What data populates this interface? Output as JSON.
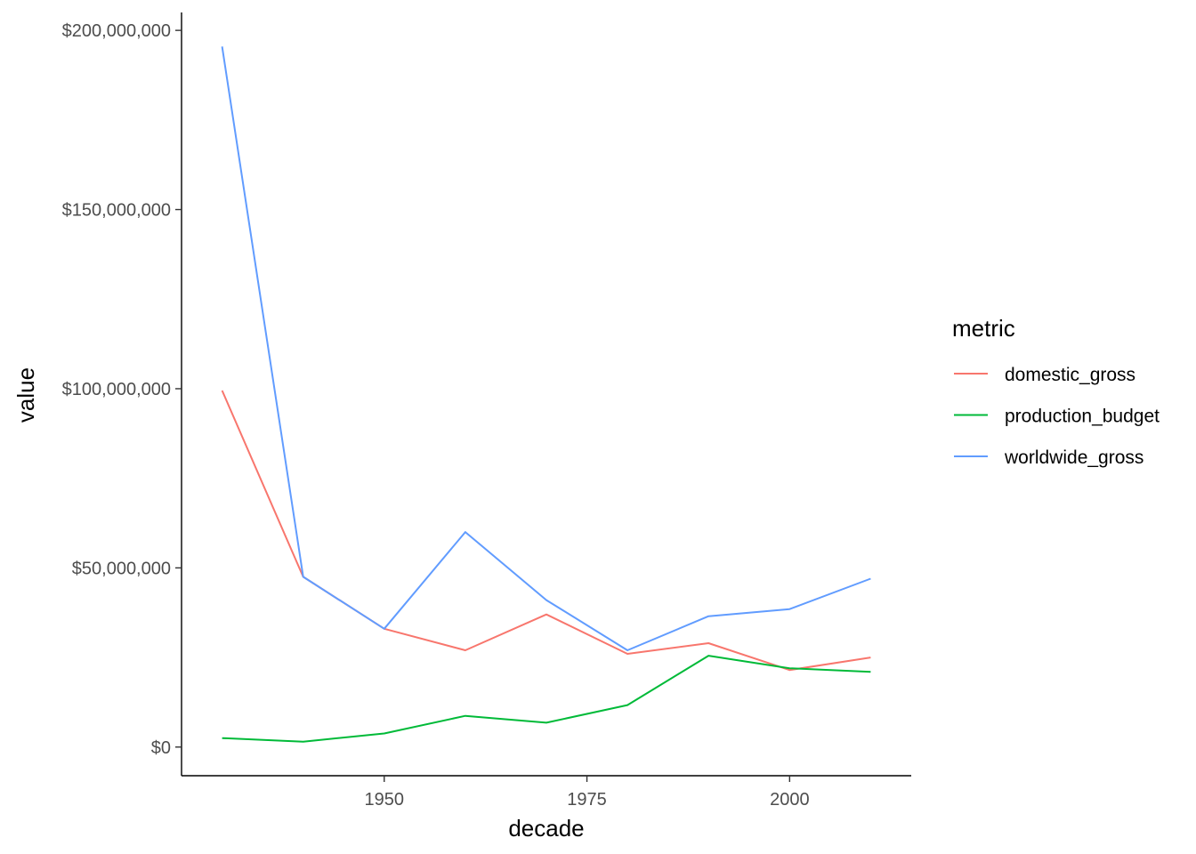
{
  "chart_data": {
    "type": "line",
    "xlabel": "decade",
    "ylabel": "value",
    "xlim": [
      1925,
      2015
    ],
    "ylim": [
      -8000000,
      205000000
    ],
    "x_ticks": [
      1950,
      1975,
      2000
    ],
    "x_tick_labels": [
      "1950",
      "1975",
      "2000"
    ],
    "y_ticks": [
      0,
      50000000,
      100000000,
      150000000,
      200000000
    ],
    "y_tick_labels": [
      "$0",
      "$50,000,000",
      "$100,000,000",
      "$150,000,000",
      "$200,000,000"
    ],
    "grid": false,
    "legend": {
      "title": "metric",
      "position": "right"
    },
    "x": [
      1930,
      1940,
      1950,
      1960,
      1970,
      1980,
      1990,
      2000,
      2010
    ],
    "series": [
      {
        "name": "domestic_gross",
        "color": "#F8766D",
        "values": [
          99500000,
          47500000,
          33000000,
          27000000,
          37000000,
          26000000,
          29000000,
          21500000,
          25000000
        ]
      },
      {
        "name": "production_budget",
        "color": "#00BA38",
        "values": [
          2500000,
          1500000,
          3800000,
          8700000,
          6800000,
          11700000,
          25500000,
          22000000,
          21000000
        ]
      },
      {
        "name": "worldwide_gross",
        "color": "#619CFF",
        "values": [
          195500000,
          47500000,
          33000000,
          60000000,
          41000000,
          27000000,
          36500000,
          38500000,
          47000000
        ]
      }
    ]
  }
}
